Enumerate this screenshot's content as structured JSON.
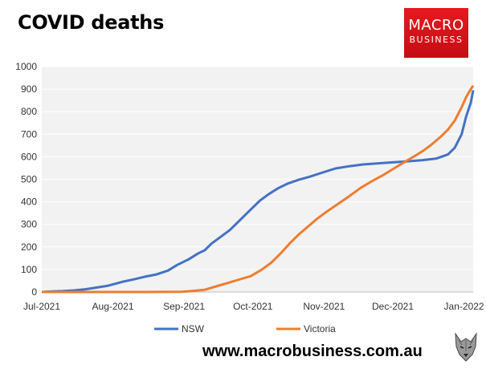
{
  "header": {
    "title": "COVID deaths",
    "logo_line1": "MACRO",
    "logo_line2": "BUSINESS",
    "website": "www.macrobusiness.com.au"
  },
  "chart_data": {
    "type": "line",
    "title": "COVID deaths",
    "xlabel": "",
    "ylabel": "",
    "xlim": [
      "2021-07-01",
      "2022-01-05"
    ],
    "ylim": [
      0,
      1000
    ],
    "yticks": [
      0,
      100,
      200,
      300,
      400,
      500,
      600,
      700,
      800,
      900,
      1000
    ],
    "xticks": [
      {
        "date": "2021-07-01",
        "label": "Jul-2021"
      },
      {
        "date": "2021-08-01",
        "label": "Aug-2021"
      },
      {
        "date": "2021-09-01",
        "label": "Sep-2021"
      },
      {
        "date": "2021-10-01",
        "label": "Oct-2021"
      },
      {
        "date": "2021-11-01",
        "label": "Nov-2021"
      },
      {
        "date": "2021-12-01",
        "label": "Dec-2021"
      },
      {
        "date": "2022-01-01",
        "label": "Jan-2022"
      }
    ],
    "grid": "horizontal",
    "legend_position": "bottom",
    "series": [
      {
        "name": "NSW",
        "color": "#4472c4",
        "points": [
          [
            "2021-07-01",
            0
          ],
          [
            "2021-07-05",
            2
          ],
          [
            "2021-07-10",
            4
          ],
          [
            "2021-07-15",
            7
          ],
          [
            "2021-07-20",
            12
          ],
          [
            "2021-07-25",
            20
          ],
          [
            "2021-07-30",
            28
          ],
          [
            "2021-08-05",
            45
          ],
          [
            "2021-08-10",
            56
          ],
          [
            "2021-08-15",
            68
          ],
          [
            "2021-08-20",
            78
          ],
          [
            "2021-08-25",
            95
          ],
          [
            "2021-08-29",
            120
          ],
          [
            "2021-09-03",
            145
          ],
          [
            "2021-09-07",
            170
          ],
          [
            "2021-09-10",
            185
          ],
          [
            "2021-09-13",
            215
          ],
          [
            "2021-09-17",
            245
          ],
          [
            "2021-09-21",
            275
          ],
          [
            "2021-09-25",
            315
          ],
          [
            "2021-09-30",
            365
          ],
          [
            "2021-10-04",
            405
          ],
          [
            "2021-10-08",
            435
          ],
          [
            "2021-10-12",
            460
          ],
          [
            "2021-10-16",
            480
          ],
          [
            "2021-10-21",
            498
          ],
          [
            "2021-10-26",
            512
          ],
          [
            "2021-11-01",
            532
          ],
          [
            "2021-11-06",
            548
          ],
          [
            "2021-11-12",
            558
          ],
          [
            "2021-11-18",
            566
          ],
          [
            "2021-11-24",
            570
          ],
          [
            "2021-12-01",
            575
          ],
          [
            "2021-12-08",
            580
          ],
          [
            "2021-12-14",
            585
          ],
          [
            "2021-12-20",
            592
          ],
          [
            "2021-12-25",
            610
          ],
          [
            "2021-12-28",
            640
          ],
          [
            "2021-12-31",
            700
          ],
          [
            "2022-01-02",
            780
          ],
          [
            "2022-01-04",
            840
          ],
          [
            "2022-01-05",
            895
          ]
        ]
      },
      {
        "name": "Victoria",
        "color": "#ed7d31",
        "points": [
          [
            "2021-07-01",
            0
          ],
          [
            "2021-08-15",
            0
          ],
          [
            "2021-08-31",
            1
          ],
          [
            "2021-09-05",
            5
          ],
          [
            "2021-09-10",
            10
          ],
          [
            "2021-09-15",
            25
          ],
          [
            "2021-09-20",
            40
          ],
          [
            "2021-09-25",
            55
          ],
          [
            "2021-09-30",
            70
          ],
          [
            "2021-10-05",
            100
          ],
          [
            "2021-10-09",
            130
          ],
          [
            "2021-10-13",
            170
          ],
          [
            "2021-10-17",
            215
          ],
          [
            "2021-10-21",
            255
          ],
          [
            "2021-10-25",
            290
          ],
          [
            "2021-10-29",
            325
          ],
          [
            "2021-11-02",
            355
          ],
          [
            "2021-11-07",
            390
          ],
          [
            "2021-11-12",
            425
          ],
          [
            "2021-11-17",
            462
          ],
          [
            "2021-11-22",
            492
          ],
          [
            "2021-11-27",
            520
          ],
          [
            "2021-12-01",
            545
          ],
          [
            "2021-12-05",
            570
          ],
          [
            "2021-12-10",
            600
          ],
          [
            "2021-12-14",
            625
          ],
          [
            "2021-12-18",
            655
          ],
          [
            "2021-12-22",
            690
          ],
          [
            "2021-12-25",
            720
          ],
          [
            "2021-12-28",
            760
          ],
          [
            "2021-12-31",
            820
          ],
          [
            "2022-01-02",
            865
          ],
          [
            "2022-01-04",
            900
          ],
          [
            "2022-01-05",
            915
          ]
        ]
      }
    ]
  }
}
